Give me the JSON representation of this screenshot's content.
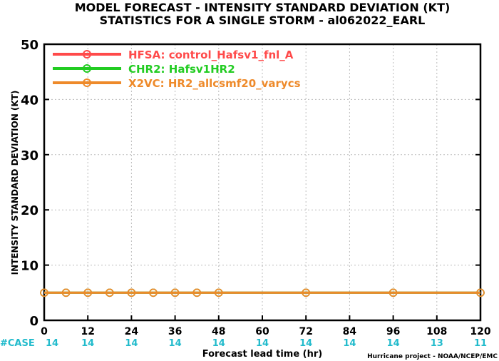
{
  "chart_data": {
    "type": "line",
    "title_lines": [
      "MODEL FORECAST - INTENSITY STANDARD DEVIATION (KT)",
      "STATISTICS FOR A SINGLE STORM - al062022_EARL"
    ],
    "xlabel": "Forecast lead time (hr)",
    "ylabel": "INTENSITY STANDARD DEVIATION (KT)",
    "xlim": [
      0,
      120
    ],
    "ylim": [
      0,
      50
    ],
    "xticks": [
      0,
      12,
      24,
      36,
      48,
      60,
      72,
      84,
      96,
      108,
      120
    ],
    "yticks": [
      0,
      10,
      20,
      30,
      40,
      50
    ],
    "grid": true,
    "legend_position": "top-left",
    "series": [
      {
        "name": "HFSA: control_Hafsv1_fnl_A",
        "color": "#ff4a4a",
        "x": [
          0,
          6,
          12,
          18,
          24,
          30,
          36,
          42,
          48,
          72,
          96,
          120
        ],
        "values": [
          5,
          5,
          5,
          5,
          5,
          5,
          5,
          5,
          5,
          5,
          5,
          5
        ]
      },
      {
        "name": "CHR2: Hafsv1HR2",
        "color": "#22cc22",
        "x": [
          0,
          6,
          12,
          18,
          24,
          30,
          36,
          42,
          48,
          72,
          96,
          120
        ],
        "values": [
          5,
          5,
          5,
          5,
          5,
          5,
          5,
          5,
          5,
          5,
          5,
          5
        ]
      },
      {
        "name": "X2VC: HR2_allcsmf20_varycs",
        "color": "#ee8a2a",
        "x": [
          0,
          6,
          12,
          18,
          24,
          30,
          36,
          42,
          48,
          72,
          96,
          120
        ],
        "values": [
          5,
          5,
          5,
          5,
          5,
          5,
          5,
          5,
          5,
          5,
          5,
          5
        ]
      }
    ],
    "case_label": "#CASE",
    "case_color": "#22bbcc",
    "case_x": [
      0,
      12,
      24,
      36,
      48,
      60,
      72,
      84,
      96,
      108,
      120
    ],
    "case_counts": [
      "14",
      "14",
      "14",
      "14",
      "14",
      "14",
      "14",
      "14",
      "14",
      "13",
      "11"
    ],
    "credit": "Hurricane project - NOAA/NCEP/EMC"
  }
}
